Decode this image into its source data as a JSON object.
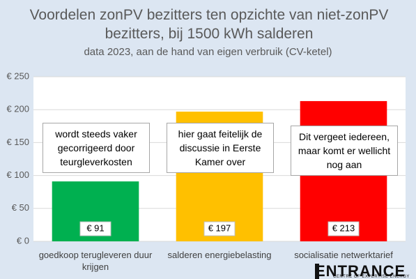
{
  "chart_data": {
    "type": "bar",
    "title": "Voordelen zonPV bezitters ten opzichte van niet-zonPV bezitters, bij 1500 kWh salderen",
    "subtitle": "data 2023, aan de hand van eigen verbruik (CV-ketel)",
    "categories": [
      "goedkoop terugleveren duur krijgen",
      "salderen energiebelasting",
      "socialisatie netwerktarief"
    ],
    "values": [
      91,
      197,
      213
    ],
    "value_labels": [
      "€ 91",
      "€ 197",
      "€ 213"
    ],
    "colors": [
      "#00b050",
      "#ffc000",
      "#ff0000"
    ],
    "annotations": [
      "wordt steeds vaker gecorrigeerd door teurgleverkosten",
      "hier gaat feitelijk de discussie in Eerste Kamer over",
      "Dit vergeet iedereen, maar komt er wellicht nog aan"
    ],
    "ylim": [
      0,
      250
    ],
    "yticks": [
      {
        "value": 0,
        "label": "€ 0"
      },
      {
        "value": 50,
        "label": "€ 50"
      },
      {
        "value": 100,
        "label": "€ 100"
      },
      {
        "value": 150,
        "label": "€ 150"
      },
      {
        "value": 200,
        "label": "€ 200"
      },
      {
        "value": 250,
        "label": "€ 250"
      }
    ],
    "grid": true
  },
  "logo": {
    "name": "ENTRANCE",
    "tagline": "CENTRE OF EXPERTISE ENERGY"
  }
}
